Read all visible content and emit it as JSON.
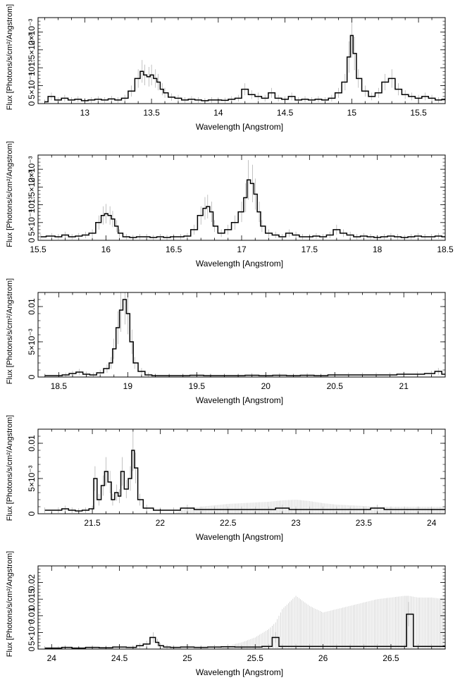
{
  "chart_data": [
    {
      "type": "line",
      "xlabel": "Wavelength [Angstrom]",
      "ylabel": "Flux [Photons/s/cm²/Angstrom]",
      "xlim": [
        12.65,
        15.7
      ],
      "ylim": [
        0,
        0.0024
      ],
      "xticks": [
        13,
        13.5,
        14,
        14.5,
        15,
        15.5
      ],
      "xtick_labels": [
        "13",
        "13.5",
        "14",
        "14.5",
        "15",
        "15.5"
      ],
      "yticks": [
        0,
        0.0005,
        0.001,
        0.0015,
        0.002
      ],
      "ytick_labels": [
        "0",
        "5×10⁻⁴",
        "10⁻³",
        "1.5×10⁻³",
        "2×10⁻³"
      ],
      "x": [
        12.7,
        12.75,
        12.8,
        12.85,
        12.9,
        12.95,
        13.0,
        13.05,
        13.1,
        13.15,
        13.2,
        13.25,
        13.3,
        13.35,
        13.4,
        13.43,
        13.45,
        13.48,
        13.5,
        13.53,
        13.55,
        13.58,
        13.6,
        13.65,
        13.7,
        13.75,
        13.8,
        13.85,
        13.9,
        13.95,
        14.0,
        14.05,
        14.1,
        14.15,
        14.2,
        14.25,
        14.3,
        14.35,
        14.4,
        14.45,
        14.5,
        14.55,
        14.6,
        14.65,
        14.7,
        14.75,
        14.8,
        14.85,
        14.9,
        14.95,
        14.98,
        15.0,
        15.02,
        15.05,
        15.1,
        15.15,
        15.2,
        15.25,
        15.3,
        15.35,
        15.4,
        15.45,
        15.5,
        15.55,
        15.6,
        15.65,
        15.7
      ],
      "y": [
        5e-05,
        0.0002,
        0.0001,
        0.00015,
        0.0001,
        0.00012,
        8e-05,
        0.0001,
        0.00012,
        0.0001,
        0.00013,
        0.0001,
        0.00015,
        0.00035,
        0.0007,
        0.0009,
        0.0008,
        0.00075,
        0.0008,
        0.0007,
        0.0006,
        0.0004,
        0.0003,
        0.00018,
        0.00015,
        0.0001,
        0.00012,
        0.0001,
        8e-05,
        0.0001,
        0.0001,
        9e-05,
        0.00012,
        0.00015,
        0.0004,
        0.00025,
        0.0002,
        0.00015,
        0.0003,
        0.00015,
        0.00012,
        0.0002,
        0.0001,
        0.00012,
        0.0001,
        0.00012,
        0.0001,
        0.00015,
        0.0003,
        0.0006,
        0.0013,
        0.0019,
        0.0014,
        0.0007,
        0.00035,
        0.0002,
        0.0003,
        0.0006,
        0.0007,
        0.0004,
        0.00025,
        0.0002,
        0.00015,
        0.0002,
        0.00015,
        0.0001,
        0.00012
      ]
    },
    {
      "type": "line",
      "xlabel": "Wavelength [Angstrom]",
      "ylabel": "Flux [Photons/s/cm²/Angstrom]",
      "xlim": [
        15.5,
        18.5
      ],
      "ylim": [
        0,
        0.0024
      ],
      "xticks": [
        15.5,
        16,
        16.5,
        17,
        17.5,
        18,
        18.5
      ],
      "xtick_labels": [
        "15.5",
        "16",
        "16.5",
        "17",
        "17.5",
        "18",
        "18.5"
      ],
      "yticks": [
        0,
        0.0005,
        0.001,
        0.0015,
        0.002
      ],
      "ytick_labels": [
        "0",
        "5×10⁻⁴",
        "10⁻³",
        "1.5×10⁻³",
        "2×10⁻³"
      ],
      "x": [
        15.52,
        15.6,
        15.65,
        15.7,
        15.75,
        15.8,
        15.85,
        15.9,
        15.95,
        15.98,
        16.0,
        16.03,
        16.05,
        16.08,
        16.1,
        16.15,
        16.2,
        16.25,
        16.3,
        16.35,
        16.4,
        16.45,
        16.5,
        16.55,
        16.6,
        16.65,
        16.7,
        16.73,
        16.75,
        16.78,
        16.8,
        16.85,
        16.9,
        16.95,
        17.0,
        17.03,
        17.05,
        17.08,
        17.1,
        17.13,
        17.15,
        17.2,
        17.25,
        17.3,
        17.35,
        17.4,
        17.45,
        17.5,
        17.55,
        17.6,
        17.65,
        17.7,
        17.75,
        17.8,
        17.85,
        17.9,
        17.95,
        18.0,
        18.05,
        18.1,
        18.15,
        18.2,
        18.25,
        18.3,
        18.35,
        18.4,
        18.45,
        18.5
      ],
      "y": [
        0.0001,
        0.00012,
        0.0001,
        0.00015,
        0.0001,
        0.00012,
        0.00015,
        0.0002,
        0.0005,
        0.0007,
        0.00075,
        0.0007,
        0.0006,
        0.0004,
        0.0002,
        0.0001,
        8e-05,
        0.0001,
        0.0001,
        8e-05,
        0.0001,
        8e-05,
        0.0001,
        0.0001,
        0.00012,
        0.0003,
        0.0007,
        0.0009,
        0.00095,
        0.0008,
        0.0004,
        0.0002,
        0.0003,
        0.0005,
        0.0008,
        0.0012,
        0.0017,
        0.0016,
        0.0013,
        0.0008,
        0.0004,
        0.0002,
        0.00015,
        0.0001,
        0.0002,
        0.00015,
        0.0001,
        0.0001,
        0.00012,
        0.0001,
        0.00015,
        0.0003,
        0.0002,
        0.00015,
        0.0001,
        0.00012,
        0.0001,
        8e-05,
        0.0001,
        0.00012,
        0.0001,
        8e-05,
        0.0001,
        0.00012,
        0.0001,
        0.0001,
        0.00012,
        0.0001
      ]
    },
    {
      "type": "line",
      "xlabel": "Wavelength [Angstrom]",
      "ylabel": "Flux [Photons/s/cm²/Angstrom]",
      "xlim": [
        18.35,
        21.3
      ],
      "ylim": [
        0,
        0.012
      ],
      "xticks": [
        18.5,
        19,
        19.5,
        20,
        20.5,
        21
      ],
      "xtick_labels": [
        "18.5",
        "19",
        "19.5",
        "20",
        "20.5",
        "21"
      ],
      "yticks": [
        0,
        0.005,
        0.01
      ],
      "ytick_labels": [
        "0",
        "5×10⁻³",
        "0.01"
      ],
      "x": [
        18.4,
        18.5,
        18.55,
        18.6,
        18.65,
        18.7,
        18.75,
        18.8,
        18.85,
        18.88,
        18.9,
        18.93,
        18.95,
        18.98,
        19.0,
        19.03,
        19.05,
        19.1,
        19.15,
        19.2,
        19.3,
        19.4,
        19.5,
        19.6,
        19.7,
        19.8,
        19.9,
        20.0,
        20.1,
        20.2,
        20.3,
        20.4,
        20.5,
        20.6,
        20.7,
        20.8,
        20.9,
        21.0,
        21.1,
        21.2,
        21.25,
        21.3
      ],
      "y": [
        0.0002,
        0.0002,
        0.0003,
        0.0005,
        0.0007,
        0.0004,
        0.0003,
        0.0006,
        0.0012,
        0.002,
        0.004,
        0.007,
        0.0095,
        0.011,
        0.009,
        0.005,
        0.002,
        0.0008,
        0.0003,
        0.0002,
        0.0002,
        0.0002,
        0.00025,
        0.0002,
        0.0002,
        0.0002,
        0.00025,
        0.0002,
        0.00025,
        0.0002,
        0.00025,
        0.0002,
        0.0003,
        0.0003,
        0.0003,
        0.0003,
        0.0003,
        0.0004,
        0.0004,
        0.0005,
        0.0008,
        0.0004
      ]
    },
    {
      "type": "line",
      "xlabel": "Wavelength [Angstrom]",
      "ylabel": "Flux [Photons/s/cm²/Angstrom]",
      "xlim": [
        21.1,
        24.1
      ],
      "ylim": [
        0,
        0.012
      ],
      "xticks": [
        21.5,
        22,
        22.5,
        23,
        23.5,
        24
      ],
      "xtick_labels": [
        "21.5",
        "22",
        "22.5",
        "23",
        "23.5",
        "24"
      ],
      "yticks": [
        0,
        0.005,
        0.01
      ],
      "ytick_labels": [
        "0",
        "5×10⁻³",
        "0.01"
      ],
      "x": [
        21.15,
        21.25,
        21.3,
        21.35,
        21.4,
        21.45,
        21.5,
        21.52,
        21.55,
        21.58,
        21.6,
        21.63,
        21.65,
        21.68,
        21.7,
        21.72,
        21.75,
        21.78,
        21.8,
        21.82,
        21.85,
        21.9,
        22.0,
        22.1,
        22.2,
        22.3,
        22.4,
        22.5,
        22.6,
        22.7,
        22.8,
        22.9,
        23.0,
        23.1,
        23.2,
        23.3,
        23.4,
        23.5,
        23.6,
        23.7,
        23.8,
        23.9,
        24.0,
        24.1
      ],
      "y": [
        0.0005,
        0.0005,
        0.0007,
        0.0005,
        0.0004,
        0.0005,
        0.0007,
        0.005,
        0.002,
        0.004,
        0.006,
        0.0045,
        0.002,
        0.003,
        0.0025,
        0.006,
        0.0035,
        0.005,
        0.009,
        0.0065,
        0.002,
        0.0008,
        0.0005,
        0.0005,
        0.0008,
        0.0006,
        0.0006,
        0.0006,
        0.0006,
        0.0006,
        0.0006,
        0.0008,
        0.0006,
        0.0006,
        0.0006,
        0.0006,
        0.0006,
        0.0006,
        0.0008,
        0.0006,
        0.0006,
        0.0006,
        0.0006,
        0.0006
      ],
      "error_band": [
        0,
        0,
        0,
        0,
        0,
        0,
        0,
        0,
        0,
        0,
        0,
        0,
        0,
        0,
        0,
        0,
        0,
        0,
        0,
        0,
        0,
        0,
        0,
        0,
        0.0008,
        0.001,
        0.0012,
        0.0014,
        0.0015,
        0.0016,
        0.0017,
        0.0019,
        0.002,
        0.0018,
        0.0015,
        0.0013,
        0.0012,
        0.0011,
        0.001,
        0.001,
        0.001,
        0.001,
        0.001,
        0.001
      ]
    },
    {
      "type": "line",
      "xlabel": "Wavelength [Angstrom]",
      "ylabel": "Flux [Photons/s/cm²/Angstrom]",
      "xlim": [
        23.9,
        26.9
      ],
      "ylim": [
        0,
        0.025
      ],
      "xticks": [
        24,
        24.5,
        25,
        25.5,
        26,
        26.5
      ],
      "xtick_labels": [
        "24",
        "24.5",
        "25",
        "25.5",
        "26",
        "26.5"
      ],
      "yticks": [
        0,
        0.005,
        0.01,
        0.015,
        0.02
      ],
      "ytick_labels": [
        "0",
        "5×10⁻³",
        "0.01",
        "0.015",
        "0.02"
      ],
      "x": [
        23.95,
        24.05,
        24.1,
        24.2,
        24.3,
        24.4,
        24.5,
        24.6,
        24.65,
        24.7,
        24.75,
        24.78,
        24.8,
        24.85,
        24.9,
        25.0,
        25.1,
        25.2,
        25.3,
        25.4,
        25.5,
        25.6,
        25.65,
        25.7,
        25.8,
        25.9,
        26.0,
        26.1,
        26.2,
        26.3,
        26.4,
        26.5,
        26.6,
        26.63,
        26.7,
        26.8,
        26.9
      ],
      "y": [
        0.0003,
        0.0003,
        0.0005,
        0.0003,
        0.0005,
        0.0004,
        0.0006,
        0.0005,
        0.001,
        0.0015,
        0.0035,
        0.002,
        0.001,
        0.0006,
        0.0005,
        0.0006,
        0.0005,
        0.0006,
        0.0007,
        0.0006,
        0.0006,
        0.0008,
        0.0035,
        0.0008,
        0.0008,
        0.0008,
        0.0008,
        0.0008,
        0.0008,
        0.0008,
        0.0008,
        0.0008,
        0.0008,
        0.0105,
        0.0008,
        0.0008,
        0.0008
      ],
      "error_band": [
        0,
        0,
        0,
        0,
        0,
        0,
        0,
        0,
        0,
        0,
        0,
        0,
        0,
        0,
        0,
        0,
        0,
        0,
        0.001,
        0.002,
        0.0035,
        0.006,
        0.008,
        0.012,
        0.016,
        0.013,
        0.011,
        0.012,
        0.013,
        0.014,
        0.015,
        0.0155,
        0.016,
        0.016,
        0.0155,
        0.0155,
        0.015
      ]
    }
  ]
}
